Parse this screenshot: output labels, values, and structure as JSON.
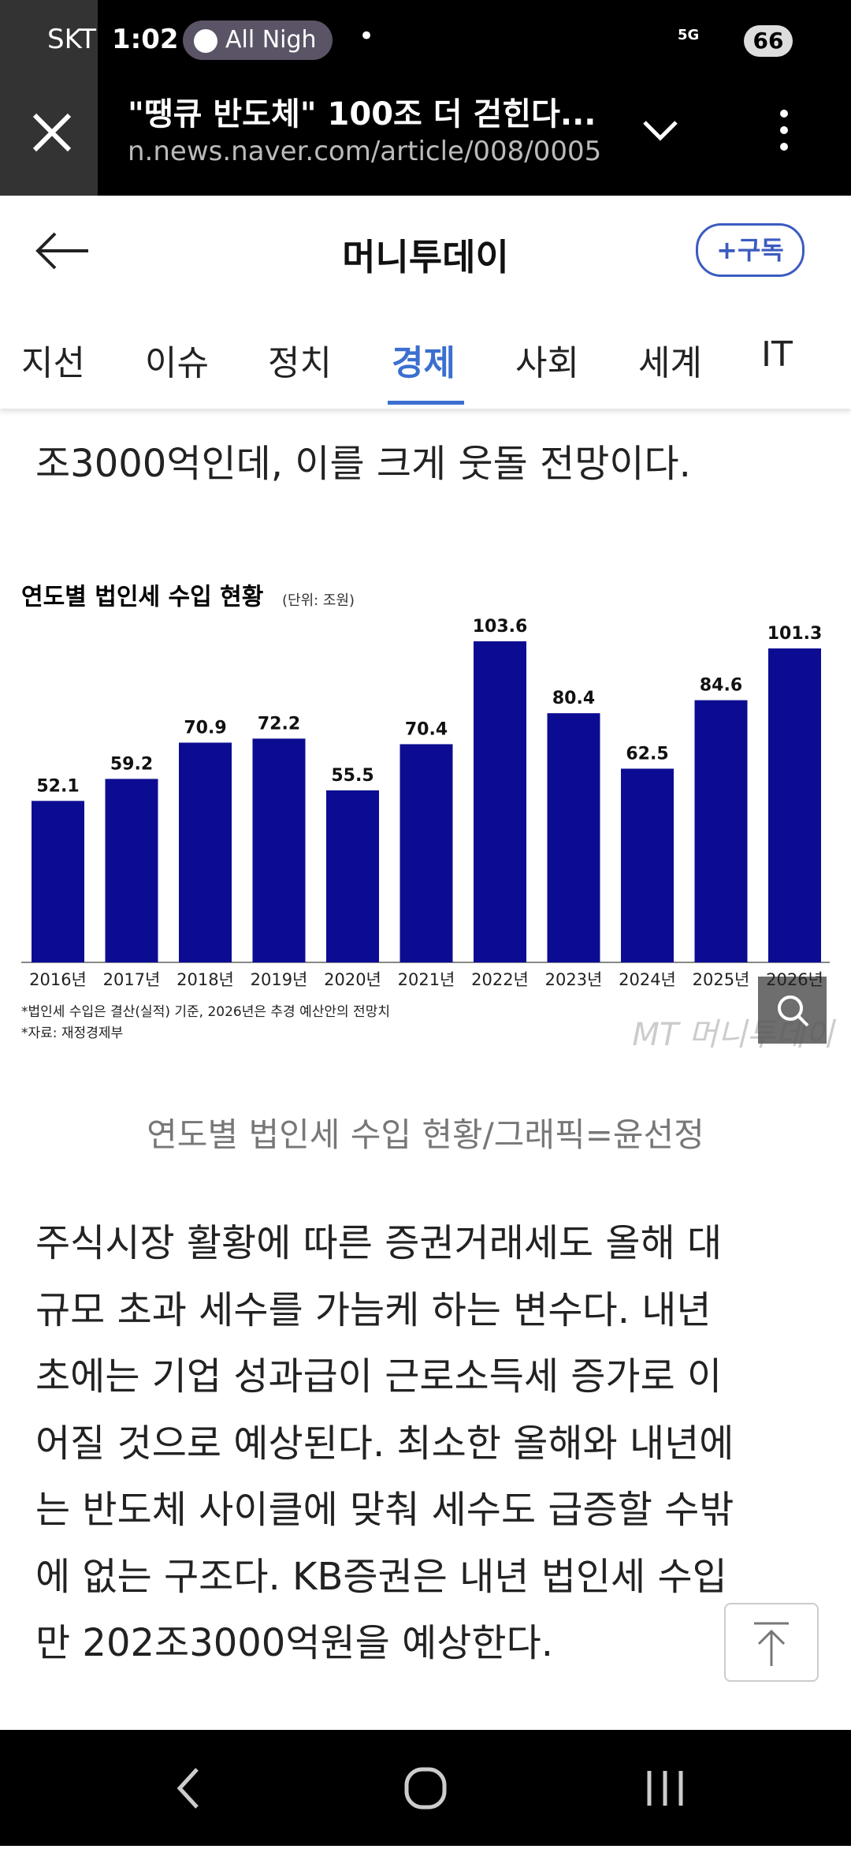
{
  "status_bar": {
    "carrier": "SKT",
    "time": "1:02",
    "media": "All Nigh",
    "network": "5G",
    "battery": "66"
  },
  "browser": {
    "title": "\"땡큐 반도체\" 100조 더 걷힌다...",
    "url": "n.news.naver.com/article/008/0005"
  },
  "header": {
    "title": "머니투데이",
    "subscribe": "+구독"
  },
  "tabs": [
    "지선",
    "이슈",
    "정치",
    "경제",
    "사회",
    "세계",
    "IT"
  ],
  "active_tab": 3,
  "lead_text": "조3000억인데, 이를 크게 웃돌 전망이다.",
  "chart_data": {
    "type": "bar",
    "title": "연도별 법인세 수입 현황",
    "subtitle": "(단위: 조원)",
    "categories": [
      "2016년",
      "2017년",
      "2018년",
      "2019년",
      "2020년",
      "2021년",
      "2022년",
      "2023년",
      "2024년",
      "2025년",
      "2026년"
    ],
    "values": [
      52.1,
      59.2,
      70.9,
      72.2,
      55.5,
      70.4,
      103.6,
      80.4,
      62.5,
      84.6,
      101.3
    ],
    "color": "#0c0c92",
    "notes": [
      "*법인세 수입은 결산(실적) 기준, 2026년은 추경 예산안의 전망치",
      "*자료: 재정경제부"
    ],
    "watermark": "MT 머니투데이"
  },
  "caption": "연도별 법인세 수입 현황/그래픽=윤선정",
  "paragraph": [
    "주식시장 활황에 따른 증권거래세도 올해 대",
    "규모 초과 세수를 가늠케 하는 변수다. 내년",
    "초에는 기업 성과급이 근로소득세 증가로 이",
    "어질 것으로 예상된다. 최소한 올해와 내년에",
    "는 반도체 사이클에 맞춰 세수도 급증할 수밖",
    "에 없는 구조다. KB증권은 내년 법인세 수입",
    "만 202조3000억원을 예상한다."
  ]
}
